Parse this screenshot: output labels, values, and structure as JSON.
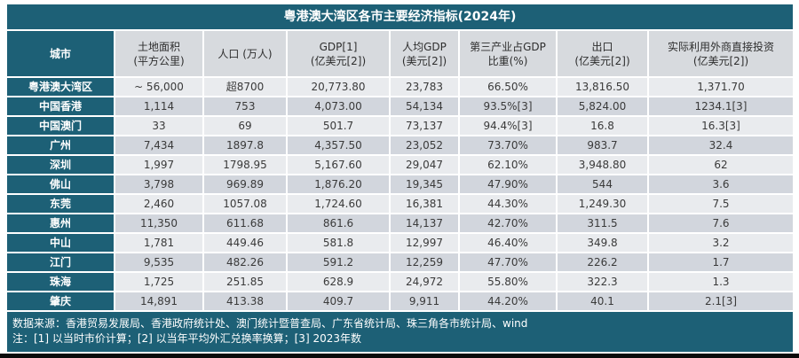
{
  "title": "粤港澳大湾区各市主要经济指标(2024年)",
  "table": {
    "columns": [
      {
        "id": "city",
        "lines": [
          "城市"
        ]
      },
      {
        "id": "land-area",
        "lines": [
          "土地面积",
          "(平方公里)"
        ]
      },
      {
        "id": "population",
        "lines": [
          "人口 (万人)"
        ]
      },
      {
        "id": "gdp",
        "lines": [
          "GDP[1]",
          "(亿美元[2])"
        ]
      },
      {
        "id": "gdp-per-capita",
        "lines": [
          "人均GDP",
          "(美元[2])"
        ]
      },
      {
        "id": "tertiary-share",
        "lines": [
          "第三产业占GDP",
          "比重(%)"
        ]
      },
      {
        "id": "exports",
        "lines": [
          "出口",
          "(亿美元[2])"
        ]
      },
      {
        "id": "fdi",
        "lines": [
          "实际利用外商直接投资",
          "(亿美元[2])"
        ]
      }
    ],
    "rows": [
      {
        "city": "粤港澳大湾区",
        "values": [
          "~ 56,000",
          "超8700",
          "20,773.80",
          "23,783",
          "66.50%",
          "13,816.50",
          "1,371.70"
        ]
      },
      {
        "city": "中国香港",
        "values": [
          "1,114",
          "753",
          "4,073.00",
          "54,134",
          "93.5%[3]",
          "5,824.00",
          "1234.1[3]"
        ]
      },
      {
        "city": "中国澳门",
        "values": [
          "33",
          "69",
          "501.7",
          "73,137",
          "94.4%[3]",
          "16.8",
          "16.3[3]"
        ]
      },
      {
        "city": "广州",
        "values": [
          "7,434",
          "1897.8",
          "4,357.50",
          "23,052",
          "73.70%",
          "983.7",
          "32.4"
        ]
      },
      {
        "city": "深圳",
        "values": [
          "1,997",
          "1798.95",
          "5,167.60",
          "29,047",
          "62.10%",
          "3,948.80",
          "62"
        ]
      },
      {
        "city": "佛山",
        "values": [
          "3,798",
          "969.89",
          "1,876.20",
          "19,345",
          "47.90%",
          "544",
          "3.6"
        ]
      },
      {
        "city": "东莞",
        "values": [
          "2,460",
          "1057.08",
          "1,724.60",
          "16,381",
          "44.30%",
          "1,249.30",
          "7.5"
        ]
      },
      {
        "city": "惠州",
        "values": [
          "11,350",
          "611.68",
          "861.6",
          "14,137",
          "42.70%",
          "311.5",
          "7.6"
        ]
      },
      {
        "city": "中山",
        "values": [
          "1,781",
          "449.46",
          "581.8",
          "12,997",
          "46.40%",
          "349.8",
          "3.2"
        ]
      },
      {
        "city": "江门",
        "values": [
          "9,535",
          "482.26",
          "591.2",
          "12,259",
          "47.70%",
          "226.2",
          "1.7"
        ]
      },
      {
        "city": "珠海",
        "values": [
          "1,725",
          "251.85",
          "628.9",
          "24,972",
          "55.80%",
          "322.3",
          "1.3"
        ]
      },
      {
        "city": "肇庆",
        "values": [
          "14,891",
          "413.38",
          "409.7",
          "9,911",
          "44.20%",
          "40.1",
          "2.1[3]"
        ]
      }
    ]
  },
  "footer": {
    "source": "数据来源：香港贸易发展局、香港政府统计处、澳门统计暨普查局、广东省统计局、珠三角各市统计局、wind",
    "notes": "注：[1] 以当时市价计算；[2] 以当年平均外汇兑换率换算；[3] 2023年数"
  },
  "colors": {
    "teal": "#1d6076",
    "header_bg": "#d7dade",
    "row_light": "#e9ebee",
    "row_dark": "#d2d6dd",
    "text_dark": "#3a3a3a",
    "bottom_edge": "#0a0a0a"
  }
}
